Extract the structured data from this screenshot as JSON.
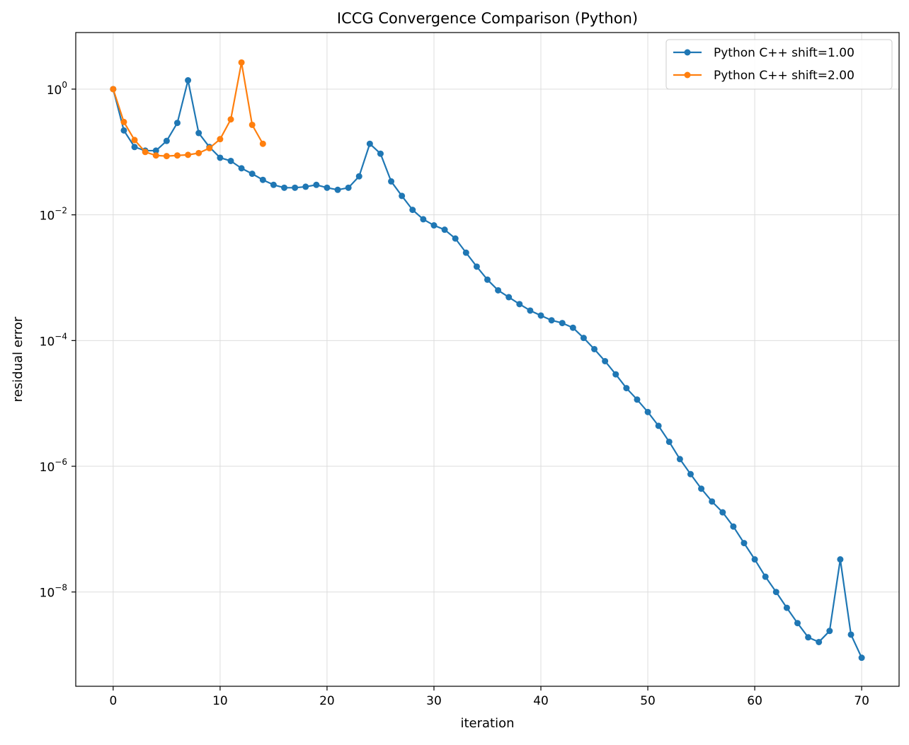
{
  "chart_data": {
    "type": "line",
    "title": "ICCG Convergence Comparison (Python)",
    "xlabel": "iteration",
    "ylabel": "residual error",
    "xlim": [
      -3.5,
      73.5
    ],
    "ylim_log10": [
      -9.5,
      0.9
    ],
    "y_scale": "log",
    "grid": true,
    "legend_position": "top-right",
    "x_ticks": [
      {
        "value": 0,
        "label": "0"
      },
      {
        "value": 10,
        "label": "10"
      },
      {
        "value": 20,
        "label": "20"
      },
      {
        "value": 30,
        "label": "30"
      },
      {
        "value": 40,
        "label": "40"
      },
      {
        "value": 50,
        "label": "50"
      },
      {
        "value": 60,
        "label": "60"
      },
      {
        "value": 70,
        "label": "70"
      }
    ],
    "y_ticks": [
      {
        "exponent": 0,
        "base": "10",
        "sup": "0"
      },
      {
        "exponent": -2,
        "base": "10",
        "sup": "−2"
      },
      {
        "exponent": -4,
        "base": "10",
        "sup": "−4"
      },
      {
        "exponent": -6,
        "base": "10",
        "sup": "−6"
      },
      {
        "exponent": -8,
        "base": "10",
        "sup": "−8"
      }
    ],
    "series": [
      {
        "name": "Python C++ shift=1.00",
        "color": "#1f77b4",
        "x": [
          0,
          1,
          2,
          3,
          4,
          5,
          6,
          7,
          8,
          9,
          10,
          11,
          12,
          13,
          14,
          15,
          16,
          17,
          18,
          19,
          20,
          21,
          22,
          23,
          24,
          25,
          26,
          27,
          28,
          29,
          30,
          31,
          32,
          33,
          34,
          35,
          36,
          37,
          38,
          39,
          40,
          41,
          42,
          43,
          44,
          45,
          46,
          47,
          48,
          49,
          50,
          51,
          52,
          53,
          54,
          55,
          56,
          57,
          58,
          59,
          60,
          61,
          62,
          63,
          64,
          65,
          66,
          67,
          68,
          69,
          70
        ],
        "y": [
          1.0,
          0.22,
          0.12,
          0.105,
          0.105,
          0.15,
          0.29,
          1.38,
          0.2,
          0.12,
          0.081,
          0.072,
          0.055,
          0.045,
          0.036,
          0.03,
          0.027,
          0.027,
          0.028,
          0.03,
          0.027,
          0.025,
          0.027,
          0.041,
          0.135,
          0.094,
          0.034,
          0.02,
          0.012,
          0.0085,
          0.0068,
          0.0058,
          0.0042,
          0.0025,
          0.0015,
          0.00093,
          0.00063,
          0.00049,
          0.00038,
          0.0003,
          0.00025,
          0.00021,
          0.00019,
          0.00016,
          0.00011,
          7.3e-05,
          4.7e-05,
          2.9e-05,
          1.75e-05,
          1.15e-05,
          7.3e-06,
          4.4e-06,
          2.45e-06,
          1.3e-06,
          7.5e-07,
          4.4e-07,
          2.75e-07,
          1.85e-07,
          1.1e-07,
          6e-08,
          3.3e-08,
          1.75e-08,
          1e-08,
          5.6e-09,
          3.2e-09,
          1.9e-09,
          1.6e-09,
          2.4e-09,
          3.3e-08,
          2.1e-09,
          9e-10
        ]
      },
      {
        "name": "Python C++ shift=2.00",
        "color": "#ff7f0e",
        "x": [
          0,
          1,
          2,
          3,
          4,
          5,
          6,
          7,
          8,
          9,
          10,
          11,
          12,
          13,
          14
        ],
        "y": [
          1.0,
          0.3,
          0.155,
          0.1,
          0.088,
          0.086,
          0.088,
          0.09,
          0.096,
          0.115,
          0.16,
          0.33,
          2.65,
          0.27,
          0.135
        ]
      }
    ]
  }
}
